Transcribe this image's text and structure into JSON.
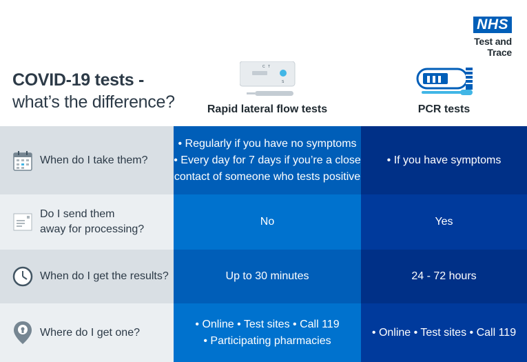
{
  "logo": {
    "nhs": "NHS",
    "subtitle": "Test and Trace"
  },
  "title": {
    "line1": "COVID-19 tests -",
    "line2": "what’s the difference?"
  },
  "columns": {
    "lateral_flow": "Rapid lateral flow tests",
    "pcr": "PCR tests"
  },
  "test_kit_labels": {
    "c": "C",
    "t": "T",
    "s": "S"
  },
  "rows": [
    {
      "icon": "calendar-icon",
      "question": "When do I take them?",
      "lateral_flow": [
        "• Regularly if you have no symptoms",
        "• Every day for 7 days if you’re a close",
        "contact of someone who tests positive"
      ],
      "pcr": [
        "• If you have symptoms"
      ]
    },
    {
      "icon": "envelope-icon",
      "question": [
        "Do I send them",
        "away for processing?"
      ],
      "lateral_flow": [
        "No"
      ],
      "pcr": [
        "Yes"
      ]
    },
    {
      "icon": "clock-icon",
      "question": "When do I get the results?",
      "lateral_flow": [
        "Up to 30 minutes"
      ],
      "pcr": [
        "24 - 72 hours"
      ]
    },
    {
      "icon": "location-pin-icon",
      "question": "Where do I get one?",
      "lateral_flow": [
        "• Online  • Test sites  • Call 119",
        "• Participating pharmacies"
      ],
      "pcr": [
        "• Online  • Test sites  • Call 119"
      ]
    }
  ],
  "colors": {
    "question_bg_dark": "#d9dfe4",
    "question_bg_light": "#ebeff2",
    "lateral_flow_dark": "#005eb8",
    "lateral_flow_light": "#0072ce",
    "pcr_dark": "#003087",
    "pcr_light": "#003a9c",
    "nhs_blue": "#005eb8"
  }
}
